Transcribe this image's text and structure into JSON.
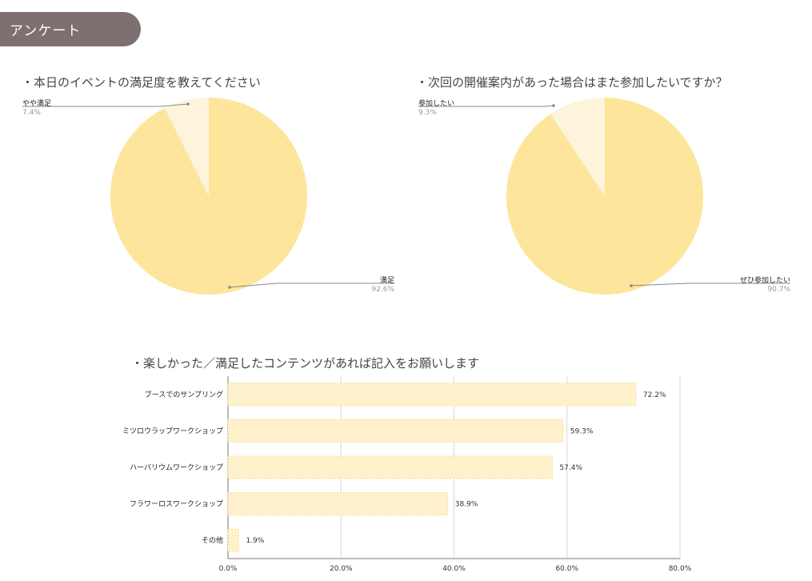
{
  "header": {
    "title": "アンケート"
  },
  "chart_data": [
    {
      "type": "pie",
      "title": "・本日のイベントの満足度を教えてください",
      "slices": [
        {
          "label": "満足",
          "value": 92.6,
          "pct_text": "92.6%",
          "color": "#fde59b"
        },
        {
          "label": "やや満足",
          "value": 7.4,
          "pct_text": "7.4%",
          "color": "#fef4dc"
        }
      ]
    },
    {
      "type": "pie",
      "title": "・次回の開催案内があった場合はまた参加したいですか？",
      "slices": [
        {
          "label": "ぜひ参加したい",
          "value": 90.7,
          "pct_text": "90.7%",
          "color": "#fde59b"
        },
        {
          "label": "参加したい",
          "value": 9.3,
          "pct_text": "9.3%",
          "color": "#fef4dc"
        }
      ]
    },
    {
      "type": "bar",
      "orientation": "horizontal",
      "title": "・楽しかった／満足したコンテンツがあれば記入をお願いします",
      "categories": [
        "ブースでのサンプリング",
        "ミツロウラップワークショップ",
        "ハーバリウムワークショップ",
        "フラワーロスワークショップ",
        "その他"
      ],
      "values": [
        72.2,
        59.3,
        57.4,
        38.9,
        1.9
      ],
      "value_labels": [
        "72.2%",
        "59.3%",
        "57.4%",
        "38.9%",
        "1.9%"
      ],
      "xlim": [
        0,
        80
      ],
      "xticks": [
        "0.0%",
        "20.0%",
        "40.0%",
        "60.0%",
        "80.0%"
      ],
      "grid": true,
      "bar_color": "#fff1cc",
      "bar_border": "#f5d98a"
    }
  ]
}
